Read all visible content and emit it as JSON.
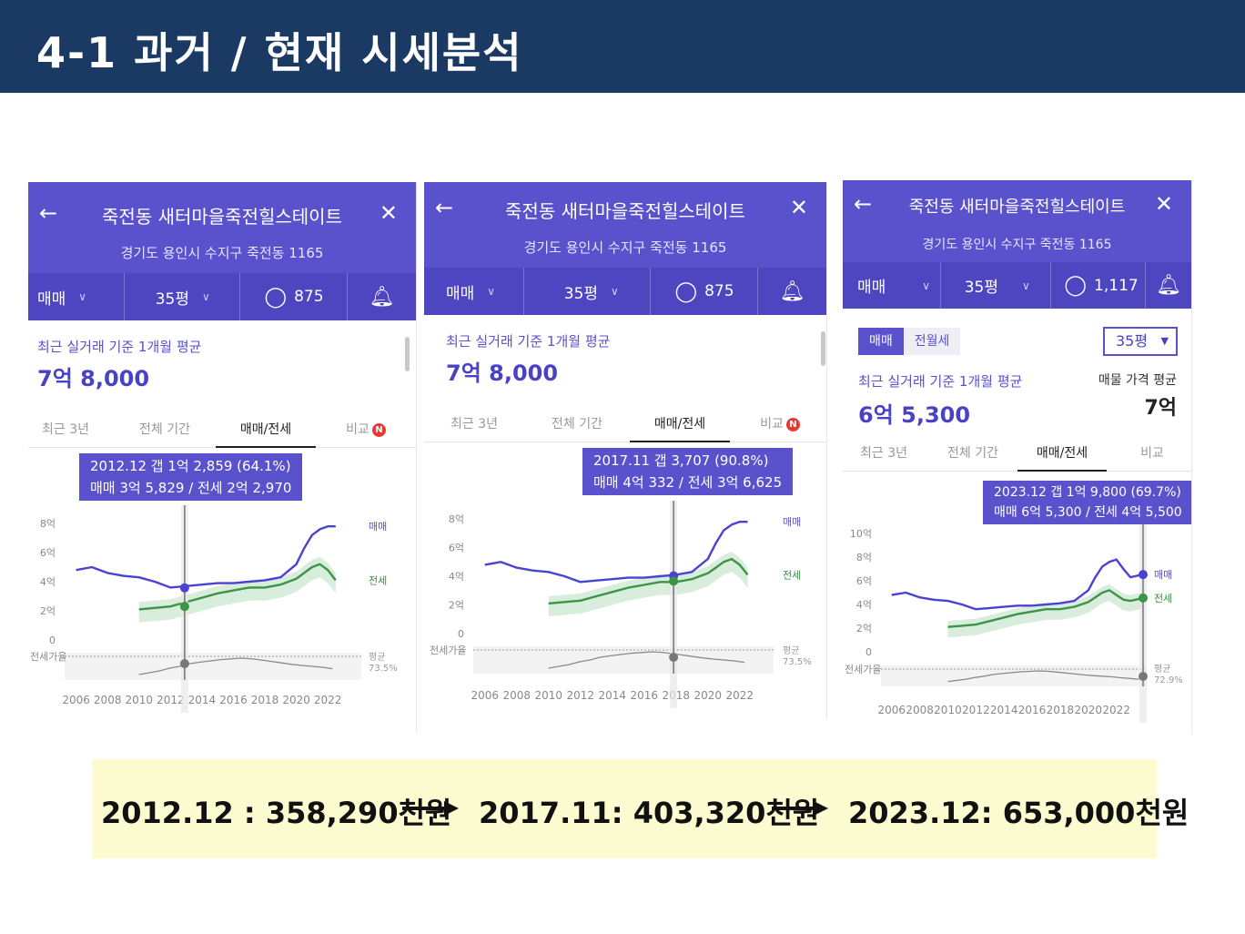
{
  "slide": {
    "title": "4-1 과거 / 현재 시세분석"
  },
  "panels": [
    {
      "apt_name": "죽전동 새터마을죽전힐스테이트",
      "address": "경기도 용인시 수지구 죽전동 1165",
      "filter_trade": "매매",
      "filter_size": "35평",
      "comment_count": "875",
      "avg_label": "최근 실거래 기준 1개월 평균",
      "avg_price": "7억 8,000",
      "tabs": [
        "최근 3년",
        "전체 기간",
        "매매/전세",
        "비교"
      ],
      "badge": "N",
      "tooltip_line1": "2012.12  갭 1억 2,859 (64.1%)",
      "tooltip_line2": "매매 3억 5,829 / 전세 2억 2,970",
      "y_ticks": [
        "8억",
        "6억",
        "4억",
        "2억",
        "0"
      ],
      "x_ticks": [
        "2006",
        "2008",
        "2010",
        "2012",
        "2014",
        "2016",
        "2018",
        "2020",
        "2022"
      ],
      "ratio_label": "전세가율",
      "legend_sale": "매매",
      "legend_jeonse": "전세",
      "ratio_avg_label": "평균",
      "ratio_avg_value": "73.5%"
    },
    {
      "apt_name": "죽전동 새터마을죽전힐스테이트",
      "address": "경기도 용인시 수지구 죽전동 1165",
      "filter_trade": "매매",
      "filter_size": "35평",
      "comment_count": "875",
      "avg_label": "최근 실거래 기준 1개월 평균",
      "avg_price": "7억 8,000",
      "tabs": [
        "최근 3년",
        "전체 기간",
        "매매/전세",
        "비교"
      ],
      "badge": "N",
      "tooltip_line1": "2017.11  갭 3,707 (90.8%)",
      "tooltip_line2": "매매 4억 332 / 전세 3억 6,625",
      "y_ticks": [
        "8억",
        "6억",
        "4억",
        "2억",
        "0"
      ],
      "x_ticks": [
        "2006",
        "2008",
        "2010",
        "2012",
        "2014",
        "2016",
        "2018",
        "2020",
        "2022"
      ],
      "ratio_label": "전세가율",
      "legend_sale": "매매",
      "legend_jeonse": "전세",
      "ratio_avg_label": "평균",
      "ratio_avg_value": "73.5%"
    },
    {
      "apt_name": "죽전동 새터마을죽전힐스테이트",
      "address": "경기도 용인시 수지구 죽전동 1165",
      "filter_trade": "매매",
      "filter_size": "35평",
      "comment_count": "1,117",
      "segment_on": "매매",
      "segment_off": "전월세",
      "size_select": "35평",
      "avg_label": "최근 실거래 기준 1개월 평균",
      "avg_price": "6억 5,300",
      "listing_label": "매물 가격 평균",
      "listing_price": "7억",
      "tabs": [
        "최근 3년",
        "전체 기간",
        "매매/전세",
        "비교"
      ],
      "tooltip_line1": "2023.12  갭 1억 9,800 (69.7%)",
      "tooltip_line2": "매매 6억 5,300 / 전세 4억 5,500",
      "y_ticks": [
        "10억",
        "8억",
        "6억",
        "4억",
        "2억",
        "0"
      ],
      "x_ticks": [
        "2006",
        "2008",
        "2010",
        "2012",
        "2014",
        "2016",
        "2018",
        "2020",
        "2022"
      ],
      "ratio_label": "전세가율",
      "legend_sale": "매매",
      "legend_jeonse": "전세",
      "ratio_avg_label": "평균",
      "ratio_avg_value": "72.9%"
    }
  ],
  "summary": {
    "item1": "2012.12  : 358,290천원",
    "item2": "2017.11: 403,320천원",
    "item3": "2023.12: 653,000천원"
  },
  "chart_data": [
    {
      "type": "line",
      "x": [
        2006,
        2007,
        2008,
        2009,
        2010,
        2011,
        2012,
        2013,
        2014,
        2015,
        2016,
        2017,
        2018,
        2019,
        2020,
        2020.5,
        2021,
        2021.5,
        2022,
        2022.5
      ],
      "series": [
        {
          "name": "매매",
          "values": [
            4.8,
            5.0,
            4.6,
            4.4,
            4.3,
            4.0,
            3.6,
            3.7,
            3.8,
            3.9,
            3.9,
            4.0,
            4.1,
            4.3,
            5.2,
            6.3,
            7.2,
            7.6,
            7.8,
            7.8
          ]
        },
        {
          "name": "전세",
          "values": [
            null,
            null,
            null,
            null,
            2.1,
            2.2,
            2.3,
            2.6,
            2.9,
            3.2,
            3.4,
            3.6,
            3.6,
            3.8,
            4.2,
            4.6,
            5.0,
            5.2,
            4.8,
            4.1
          ]
        }
      ],
      "ylim": [
        0,
        8
      ],
      "highlight": {
        "x": 2012.9,
        "sale": 3.58,
        "jeonse": 2.3
      },
      "ratio_avg": 73.5
    },
    {
      "type": "line",
      "x": [
        2006,
        2007,
        2008,
        2009,
        2010,
        2011,
        2012,
        2013,
        2014,
        2015,
        2016,
        2017,
        2018,
        2019,
        2020,
        2020.5,
        2021,
        2021.5,
        2022,
        2022.5
      ],
      "series": [
        {
          "name": "매매",
          "values": [
            4.8,
            5.0,
            4.6,
            4.4,
            4.3,
            4.0,
            3.6,
            3.7,
            3.8,
            3.9,
            3.9,
            4.0,
            4.1,
            4.3,
            5.2,
            6.3,
            7.2,
            7.6,
            7.8,
            7.8
          ]
        },
        {
          "name": "전세",
          "values": [
            null,
            null,
            null,
            null,
            2.1,
            2.2,
            2.3,
            2.6,
            2.9,
            3.2,
            3.4,
            3.6,
            3.6,
            3.8,
            4.2,
            4.6,
            5.0,
            5.2,
            4.8,
            4.1
          ]
        }
      ],
      "ylim": [
        0,
        8
      ],
      "highlight": {
        "x": 2017.85,
        "sale": 4.03,
        "jeonse": 3.66
      },
      "ratio_avg": 73.5
    },
    {
      "type": "line",
      "x": [
        2006,
        2007,
        2008,
        2009,
        2010,
        2011,
        2012,
        2013,
        2014,
        2015,
        2016,
        2017,
        2018,
        2019,
        2020,
        2020.5,
        2021,
        2021.5,
        2022,
        2022.5,
        2023,
        2023.9
      ],
      "series": [
        {
          "name": "매매",
          "values": [
            4.8,
            5.0,
            4.6,
            4.4,
            4.3,
            4.0,
            3.6,
            3.7,
            3.8,
            3.9,
            3.9,
            4.0,
            4.1,
            4.3,
            5.2,
            6.3,
            7.2,
            7.6,
            7.8,
            7.0,
            6.3,
            6.53
          ]
        },
        {
          "name": "전세",
          "values": [
            null,
            null,
            null,
            null,
            2.1,
            2.2,
            2.3,
            2.6,
            2.9,
            3.2,
            3.4,
            3.6,
            3.6,
            3.8,
            4.2,
            4.6,
            5.0,
            5.2,
            4.8,
            4.4,
            4.3,
            4.55
          ]
        }
      ],
      "ylim": [
        0,
        10
      ],
      "highlight": {
        "x": 2023.9,
        "sale": 6.53,
        "jeonse": 4.55
      },
      "ratio_avg": 72.9
    }
  ]
}
